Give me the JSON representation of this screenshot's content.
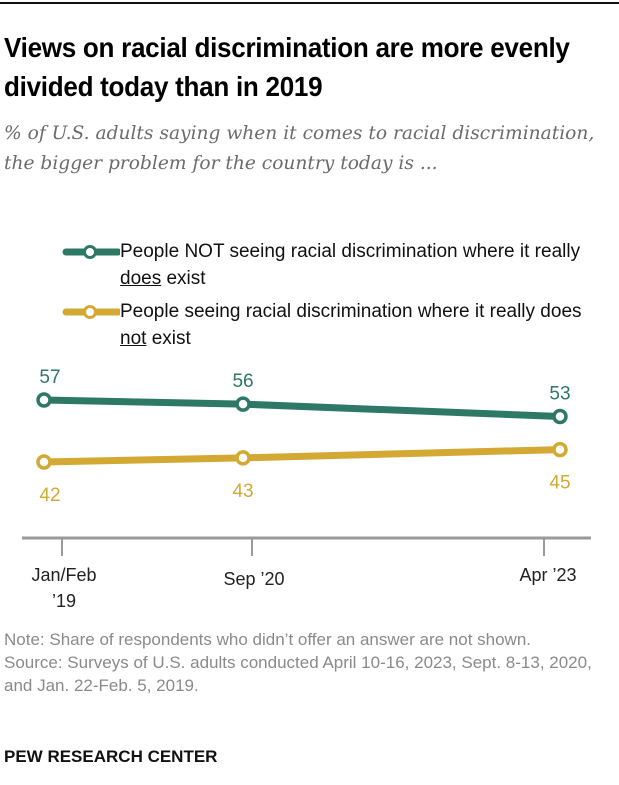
{
  "header": {
    "title": "Views on racial discrimination are more evenly divided today than in 2019",
    "subtitle": "% of U.S. adults saying when it comes to racial discrimination, the bigger problem for the country today is ..."
  },
  "legend": [
    {
      "pre": "People NOT seeing racial discrimination where it really ",
      "em": "does",
      "post": " exist",
      "color": "#2e7866"
    },
    {
      "pre": "People seeing racial discrimination where it really does ",
      "em": "not",
      "post": " exist",
      "color": "#d3a934"
    }
  ],
  "chart_data": {
    "type": "line",
    "title": "Views on racial discrimination are more evenly divided today than in 2019",
    "x": [
      "Jan/Feb '19",
      "Sep '20",
      "Apr '23"
    ],
    "x_time": [
      2019.08,
      2020.7,
      2023.28
    ],
    "series": [
      {
        "name": "People NOT seeing racial discrimination where it really does exist",
        "values": [
          57,
          56,
          53
        ],
        "color": "#2e7866"
      },
      {
        "name": "People seeing racial discrimination where it really does not exist",
        "values": [
          42,
          43,
          45
        ],
        "color": "#d3a934"
      }
    ],
    "xlabel": "",
    "ylabel": "",
    "grid": false,
    "legend": "top-left"
  },
  "notes": {
    "note": "Note: Share of respondents who didn’t offer an answer are not shown.",
    "source": "Source: Surveys of U.S. adults conducted April 10-16, 2023, Sept. 8-13, 2020, and Jan. 22-Feb. 5, 2019."
  },
  "brand": "PEW RESEARCH CENTER"
}
